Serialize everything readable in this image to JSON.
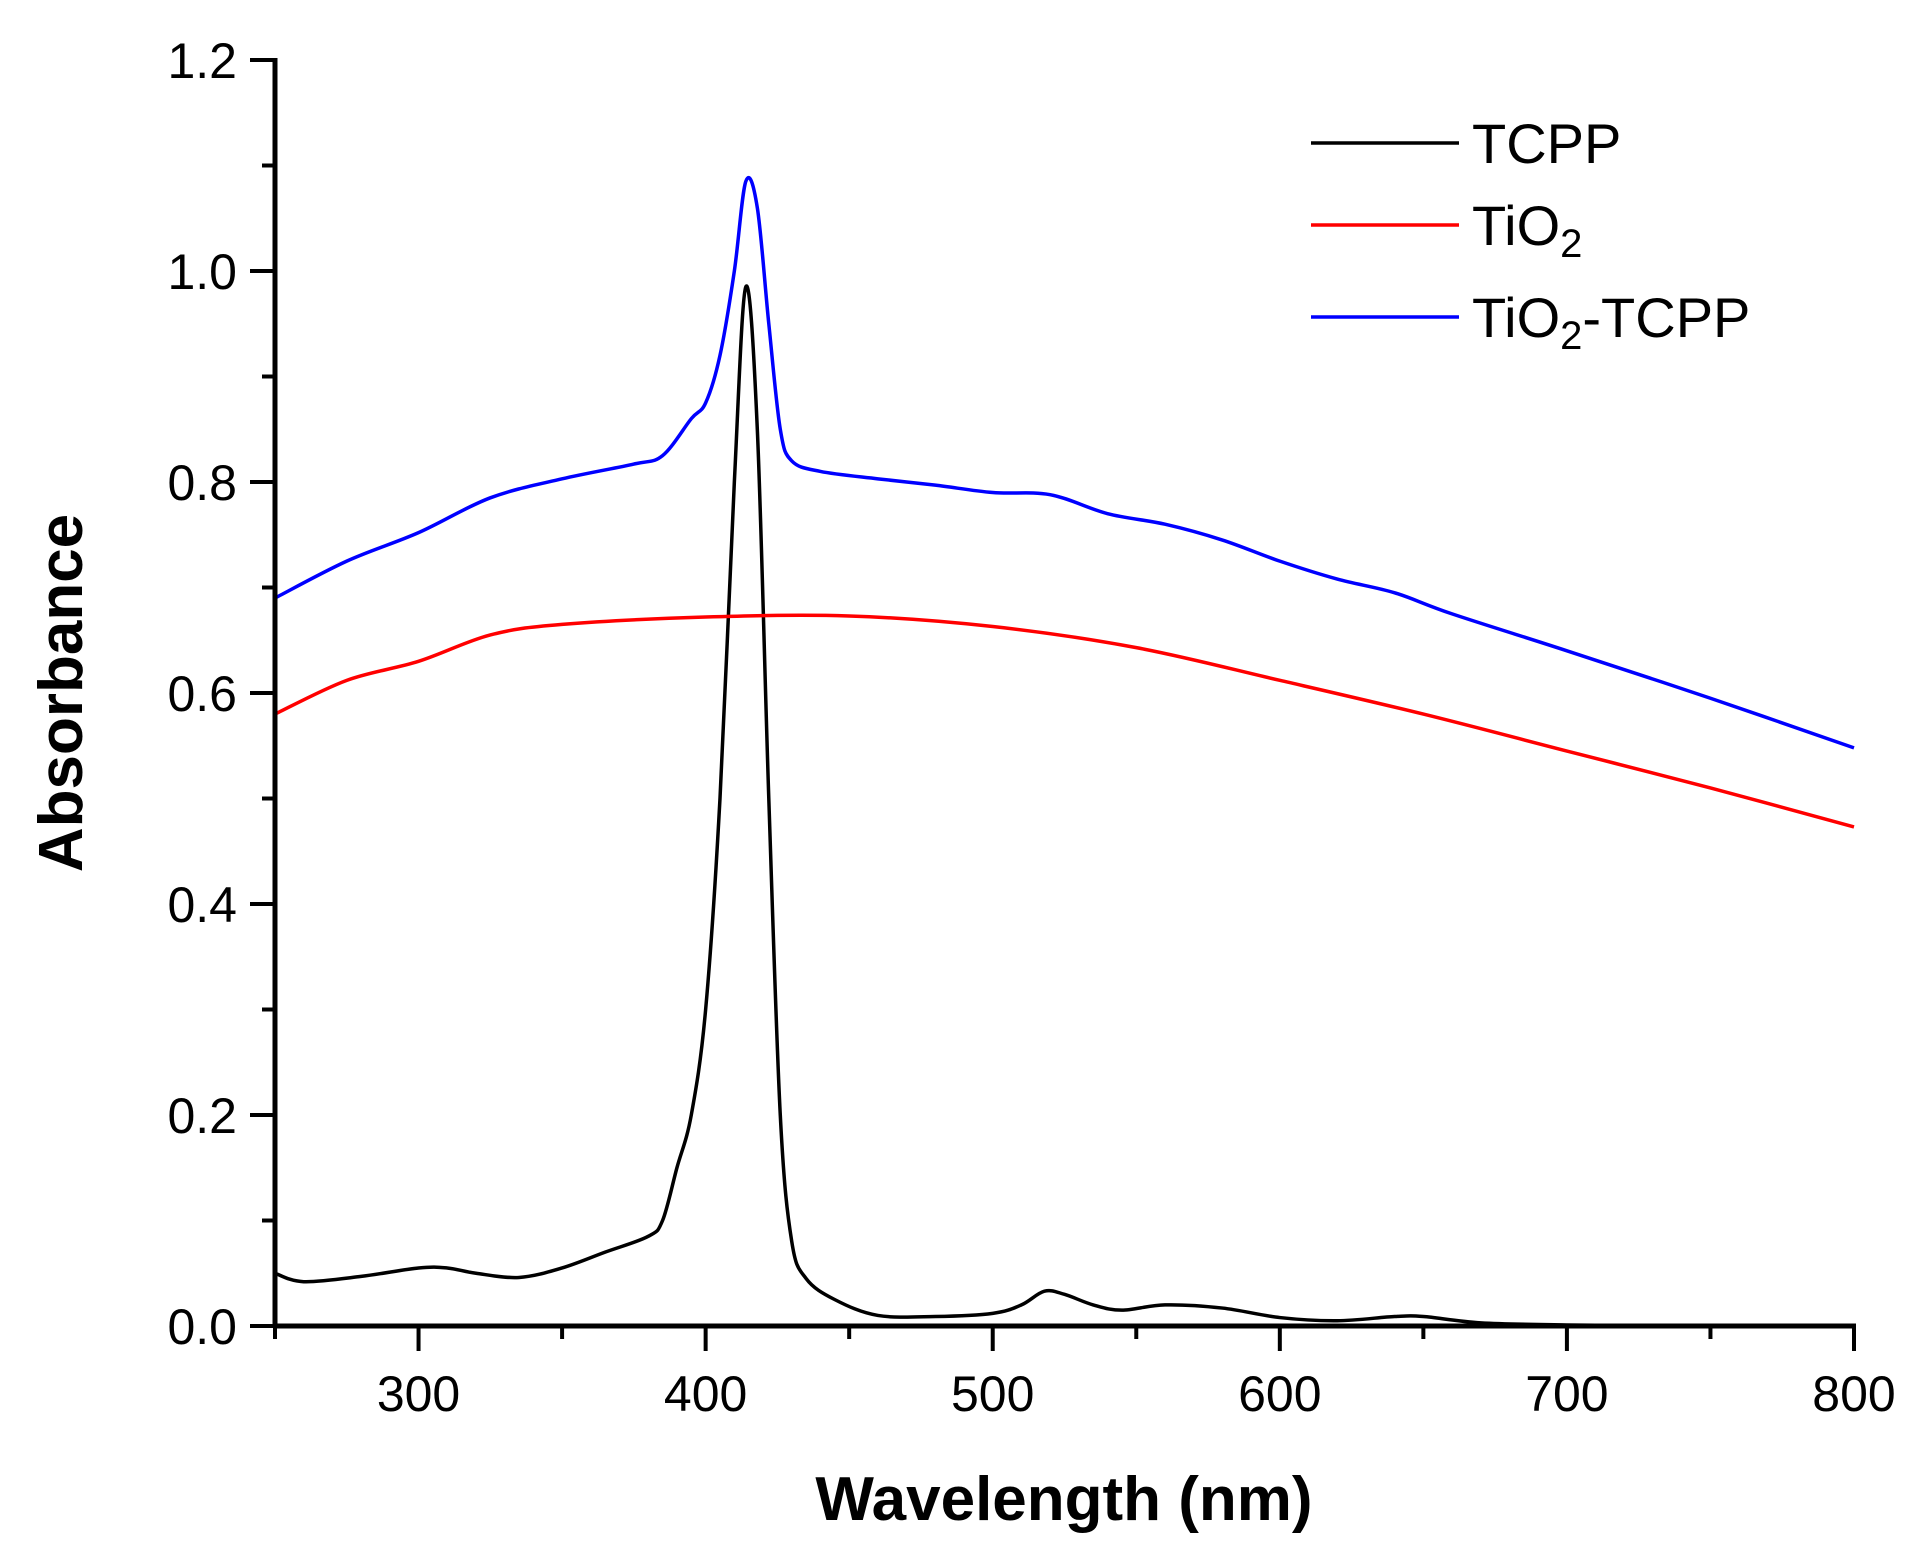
{
  "chart_data": {
    "type": "line",
    "title": "",
    "xlabel": "Wavelength (nm)",
    "ylabel": "Absorbance",
    "xlim": [
      250,
      800
    ],
    "ylim": [
      0,
      1.2
    ],
    "xticks": [
      300,
      400,
      500,
      600,
      700,
      800
    ],
    "xtick_labels": [
      "300",
      "400",
      "500",
      "600",
      "700",
      "800"
    ],
    "yticks": [
      0.0,
      0.2,
      0.4,
      0.6,
      0.8,
      1.0,
      1.2
    ],
    "ytick_labels": [
      "0.0",
      "0.2",
      "0.4",
      "0.6",
      "0.8",
      "1.0",
      "1.2"
    ],
    "grid": false,
    "legend_position": "top-right",
    "series": [
      {
        "name": "TCPP",
        "name_main": "TCPP",
        "name_sub": "",
        "name_rest": "",
        "color": "#000000",
        "x": [
          250,
          260,
          280,
          300,
          310,
          320,
          335,
          350,
          365,
          380,
          385,
          390,
          395,
          400,
          405,
          410,
          414,
          418,
          422,
          426,
          430,
          435,
          445,
          460,
          480,
          500,
          510,
          518,
          525,
          535,
          545,
          560,
          580,
          600,
          620,
          640,
          650,
          670,
          700,
          750,
          800
        ],
        "y": [
          0.05,
          0.042,
          0.047,
          0.055,
          0.055,
          0.05,
          0.046,
          0.055,
          0.07,
          0.085,
          0.1,
          0.15,
          0.2,
          0.3,
          0.5,
          0.8,
          0.985,
          0.85,
          0.5,
          0.2,
          0.08,
          0.045,
          0.025,
          0.01,
          0.009,
          0.012,
          0.02,
          0.033,
          0.03,
          0.02,
          0.015,
          0.02,
          0.017,
          0.008,
          0.005,
          0.009,
          0.009,
          0.003,
          0.001,
          0.0,
          0.0
        ]
      },
      {
        "name": "TiO2",
        "name_main": "TiO",
        "name_sub": "2",
        "name_rest": "",
        "color": "#ff0000",
        "x": [
          250,
          275,
          300,
          325,
          350,
          400,
          450,
          500,
          550,
          600,
          650,
          700,
          750,
          800
        ],
        "y": [
          0.58,
          0.612,
          0.63,
          0.655,
          0.665,
          0.672,
          0.673,
          0.663,
          0.643,
          0.612,
          0.58,
          0.545,
          0.51,
          0.473
        ]
      },
      {
        "name": "TiO2-TCPP",
        "name_main": "TiO",
        "name_sub": "2",
        "name_rest": "-TCPP",
        "color": "#0000ff",
        "x": [
          250,
          275,
          300,
          325,
          350,
          375,
          385,
          395,
          400,
          405,
          410,
          414,
          418,
          422,
          426,
          430,
          440,
          460,
          480,
          500,
          520,
          540,
          560,
          580,
          600,
          620,
          640,
          660,
          700,
          750,
          800
        ],
        "y": [
          0.69,
          0.725,
          0.752,
          0.785,
          0.803,
          0.817,
          0.825,
          0.86,
          0.875,
          0.92,
          1.0,
          1.085,
          1.06,
          0.95,
          0.85,
          0.82,
          0.81,
          0.803,
          0.797,
          0.79,
          0.788,
          0.77,
          0.76,
          0.745,
          0.725,
          0.708,
          0.695,
          0.675,
          0.64,
          0.595,
          0.548
        ]
      }
    ]
  }
}
